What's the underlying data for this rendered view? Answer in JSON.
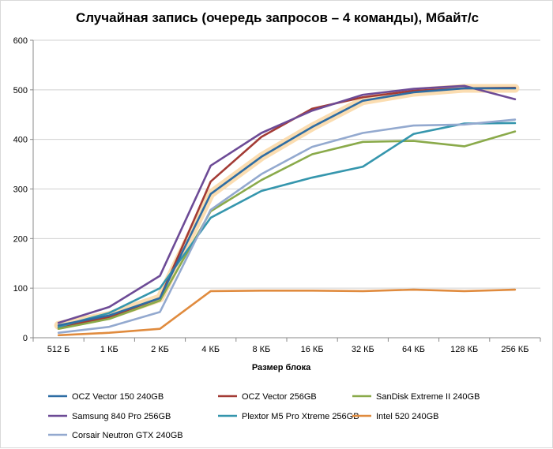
{
  "chart_data": {
    "type": "line",
    "title": "Случайная запись (очередь запросов – 4 команды), Мбайт/с",
    "xlabel": "Размер блока",
    "ylabel": "",
    "categories": [
      "512 Б",
      "1 КБ",
      "2 КБ",
      "4 КБ",
      "8 КБ",
      "16 КБ",
      "32 КБ",
      "64 КБ",
      "128 КБ",
      "256 КБ"
    ],
    "ylim": [
      0,
      600
    ],
    "yticks": [
      0,
      100,
      200,
      300,
      400,
      500,
      600
    ],
    "grid": true,
    "legend_position": "bottom",
    "highlight_series": "OCZ Vector 150 240GB",
    "highlight_color": "#fbd9a8",
    "series": [
      {
        "name": "OCZ Vector 150 240GB",
        "color": "#2e6da4",
        "values": [
          25,
          45,
          80,
          290,
          365,
          425,
          478,
          495,
          503,
          503
        ]
      },
      {
        "name": "OCZ Vector 256GB",
        "color": "#a33b35",
        "values": [
          20,
          42,
          80,
          315,
          405,
          462,
          485,
          498,
          503,
          504
        ]
      },
      {
        "name": "SanDisk Extreme II 240GB",
        "color": "#8aaa4a",
        "values": [
          18,
          38,
          75,
          255,
          318,
          370,
          395,
          397,
          386,
          416
        ]
      },
      {
        "name": "Samsung 840 Pro 256GB",
        "color": "#6d4b96",
        "values": [
          30,
          62,
          125,
          347,
          413,
          458,
          490,
          502,
          508,
          481
        ]
      },
      {
        "name": "Plextor M5 Pro Xtreme 256GB",
        "color": "#3596ad",
        "values": [
          22,
          50,
          100,
          242,
          296,
          323,
          345,
          411,
          432,
          433
        ]
      },
      {
        "name": "Intel 520 240GB",
        "color": "#e08b3e",
        "values": [
          5,
          10,
          18,
          94,
          95,
          95,
          94,
          97,
          94,
          97
        ]
      },
      {
        "name": "Corsair Neutron GTX 240GB",
        "color": "#93a9cf",
        "values": [
          10,
          22,
          52,
          258,
          330,
          385,
          413,
          428,
          430,
          440
        ]
      }
    ]
  }
}
